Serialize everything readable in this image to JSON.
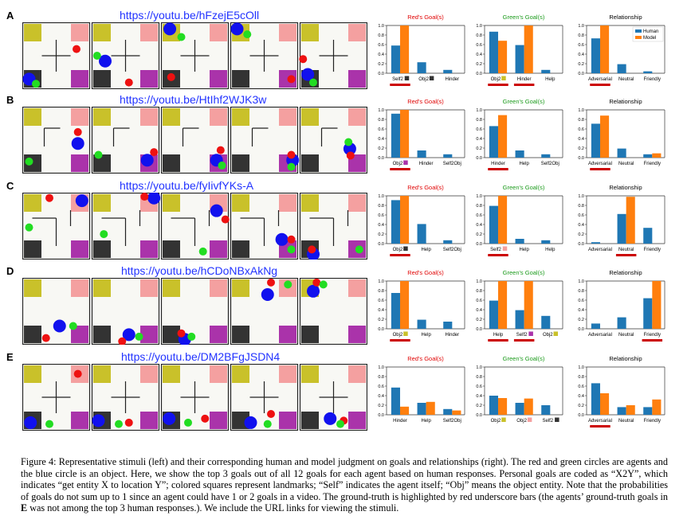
{
  "colors": {
    "human": "#1f77b4",
    "model": "#ff7f0e",
    "gt_bar": "#cc0000",
    "title_red": "#e00000",
    "title_green": "#1a9a1a",
    "yellow": "#c9c12a",
    "pink": "#f4a0a0",
    "black_lm": "#333333",
    "purple": "#aa33aa",
    "agent_red": "#ee1111",
    "agent_green": "#22dd22",
    "object_blue": "#1111ee",
    "url": "#2233ff"
  },
  "legend": {
    "human": "Human",
    "model": "Model"
  },
  "rows": [
    {
      "letter": "A",
      "url": "https://youtu.be/hFzejE5cOll",
      "frames": [
        {
          "walls": "cross",
          "red": [
            0.8,
            0.4
          ],
          "green": [
            0.2,
            0.92
          ],
          "blue": [
            0.1,
            0.85
          ]
        },
        {
          "walls": "cross",
          "red": [
            0.55,
            0.9
          ],
          "green": [
            0.08,
            0.5
          ],
          "blue": [
            0.2,
            0.58
          ]
        },
        {
          "walls": "cross",
          "red": [
            0.15,
            0.82
          ],
          "green": [
            0.3,
            0.22
          ],
          "blue": [
            0.13,
            0.1
          ]
        },
        {
          "walls": "cross",
          "red": [
            0.9,
            0.85
          ],
          "green": [
            0.25,
            0.18
          ],
          "blue": [
            0.1,
            0.1
          ]
        },
        {
          "walls": "cross",
          "red": [
            0.05,
            0.55
          ],
          "green": [
            0.2,
            0.9
          ],
          "blue": [
            0.12,
            0.78
          ]
        }
      ],
      "charts": [
        {
          "title": "Red's Goal(s)",
          "title_color": "red",
          "labels": [
            "Self2",
            "Obj2",
            "Hinder"
          ],
          "swatches": [
            "black",
            "black",
            ""
          ],
          "human": [
            0.58,
            0.23,
            0.07
          ],
          "model": [
            1.0,
            0,
            0
          ],
          "gt": [
            0
          ]
        },
        {
          "title": "Green's Goal(s)",
          "title_color": "green",
          "labels": [
            "Obj2",
            "Hinder",
            "Help"
          ],
          "swatches": [
            "yellow",
            "",
            ""
          ],
          "human": [
            0.87,
            0.59,
            0.07
          ],
          "model": [
            0.68,
            1.0,
            0
          ],
          "gt": [
            0,
            1
          ]
        },
        {
          "title": "Relationship",
          "title_color": "black",
          "labels": [
            "Adversarial",
            "Neutral",
            "Friendly"
          ],
          "swatches": [
            "",
            "",
            ""
          ],
          "human": [
            0.73,
            0.19,
            0.04
          ],
          "model": [
            1.0,
            0,
            0
          ],
          "gt": [
            0
          ],
          "legend": true
        }
      ]
    },
    {
      "letter": "B",
      "url": "https://youtu.be/HtIhf2WJK3w",
      "frames": [
        {
          "walls": "corner",
          "red": [
            0.82,
            0.38
          ],
          "green": [
            0.1,
            0.82
          ],
          "blue": [
            0.82,
            0.55
          ]
        },
        {
          "walls": "corner",
          "red": [
            0.92,
            0.68
          ],
          "green": [
            0.1,
            0.72
          ],
          "blue": [
            0.82,
            0.8
          ]
        },
        {
          "walls": "corner",
          "red": [
            0.88,
            0.65
          ],
          "green": [
            0.9,
            0.88
          ],
          "blue": [
            0.82,
            0.8
          ]
        },
        {
          "walls": "corner",
          "red": [
            0.9,
            0.72
          ],
          "green": [
            0.9,
            0.9
          ],
          "blue": [
            0.92,
            0.8
          ]
        },
        {
          "walls": "corner",
          "red": [
            0.75,
            0.73
          ],
          "green": [
            0.72,
            0.53
          ],
          "blue": [
            0.74,
            0.63
          ]
        }
      ],
      "charts": [
        {
          "title": "Red's Goal(s)",
          "title_color": "red",
          "labels": [
            "Obj2",
            "Hinder",
            "Self2Obj"
          ],
          "swatches": [
            "purple",
            "",
            ""
          ],
          "human": [
            0.92,
            0.15,
            0.07
          ],
          "model": [
            1.0,
            0,
            0
          ],
          "gt": [
            0
          ]
        },
        {
          "title": "Green's Goal(s)",
          "title_color": "green",
          "labels": [
            "Hinder",
            "Help",
            "Self2Obj"
          ],
          "swatches": [
            "",
            "",
            ""
          ],
          "human": [
            0.66,
            0.15,
            0.07
          ],
          "model": [
            0.89,
            0,
            0
          ],
          "gt": [
            0
          ]
        },
        {
          "title": "Relationship",
          "title_color": "black",
          "labels": [
            "Adversarial",
            "Neutral",
            "Friendly"
          ],
          "swatches": [
            "",
            "",
            ""
          ],
          "human": [
            0.71,
            0.19,
            0.07
          ],
          "model": [
            0.88,
            0,
            0.09
          ],
          "gt": [
            0
          ]
        }
      ]
    },
    {
      "letter": "C",
      "url": "https://youtu.be/fyIivfYKs-A",
      "frames": [
        {
          "walls": "tee",
          "red": [
            0.4,
            0.08
          ],
          "green": [
            0.1,
            0.52
          ],
          "blue": [
            0.88,
            0.12
          ]
        },
        {
          "walls": "tee",
          "red": [
            0.78,
            0.06
          ],
          "green": [
            0.18,
            0.62
          ],
          "blue": [
            0.92,
            0.08
          ]
        },
        {
          "walls": "tee",
          "red": [
            0.95,
            0.4
          ],
          "green": [
            0.62,
            0.88
          ],
          "blue": [
            0.82,
            0.27
          ]
        },
        {
          "walls": "tee",
          "red": [
            0.9,
            0.7
          ],
          "green": [
            0.9,
            0.85
          ],
          "blue": [
            0.76,
            0.7
          ]
        },
        {
          "walls": "tee",
          "red": [
            0.18,
            0.85
          ],
          "green": [
            0.88,
            0.85
          ],
          "blue": [
            0.2,
            0.92
          ]
        }
      ],
      "charts": [
        {
          "title": "Red's Goal(s)",
          "title_color": "red",
          "labels": [
            "Obj2",
            "Help",
            "Self2Obj"
          ],
          "swatches": [
            "black",
            "",
            ""
          ],
          "human": [
            0.91,
            0.41,
            0.07
          ],
          "model": [
            1.0,
            0,
            0
          ],
          "gt": [
            0
          ]
        },
        {
          "title": "Green's Goal(s)",
          "title_color": "green",
          "labels": [
            "Self2",
            "Help",
            "Help"
          ],
          "swatches": [
            "pink",
            "",
            ""
          ],
          "human": [
            0.79,
            0.1,
            0.07
          ],
          "model": [
            1.0,
            0,
            0
          ],
          "gt": [
            0
          ]
        },
        {
          "title": "Relationship",
          "title_color": "black",
          "labels": [
            "Adversarial",
            "Neutral",
            "Friendly"
          ],
          "swatches": [
            "",
            "",
            ""
          ],
          "human": [
            0.03,
            0.62,
            0.33
          ],
          "model": [
            0,
            0.98,
            0
          ],
          "gt": [
            1
          ]
        }
      ]
    },
    {
      "letter": "D",
      "url": "https://youtu.be/hCDoNBxAkNg",
      "frames": [
        {
          "walls": "none",
          "red": [
            0.35,
            0.9
          ],
          "green": [
            0.75,
            0.72
          ],
          "blue": [
            0.55,
            0.72
          ]
        },
        {
          "walls": "none",
          "red": [
            0.45,
            0.95
          ],
          "green": [
            0.7,
            0.88
          ],
          "blue": [
            0.55,
            0.85
          ]
        },
        {
          "walls": "none",
          "red": [
            0.3,
            0.83
          ],
          "green": [
            0.45,
            0.88
          ],
          "blue": [
            0.35,
            0.92
          ]
        },
        {
          "walls": "none",
          "red": [
            0.6,
            0.07
          ],
          "green": [
            0.85,
            0.1
          ],
          "blue": [
            0.55,
            0.25
          ]
        },
        {
          "walls": "none",
          "red": [
            0.25,
            0.07
          ],
          "green": [
            0.35,
            0.1
          ],
          "blue": [
            0.2,
            0.2
          ]
        }
      ],
      "charts": [
        {
          "title": "Red's Goal(s)",
          "title_color": "red",
          "labels": [
            "Obj2",
            "Help",
            "Hinder"
          ],
          "swatches": [
            "yellow",
            "",
            ""
          ],
          "human": [
            0.75,
            0.19,
            0.15
          ],
          "model": [
            1.0,
            0,
            0
          ],
          "gt": [
            0
          ]
        },
        {
          "title": "Green's Goal(s)",
          "title_color": "green",
          "labels": [
            "Help",
            "Self2",
            "Obj2"
          ],
          "swatches": [
            "",
            "purple",
            "yellow"
          ],
          "human": [
            0.59,
            0.39,
            0.27
          ],
          "model": [
            1.0,
            1.0,
            0
          ],
          "gt": [
            0,
            1
          ]
        },
        {
          "title": "Relationship",
          "title_color": "black",
          "labels": [
            "Adversarial",
            "Neutral",
            "Friendly"
          ],
          "swatches": [
            "",
            "",
            ""
          ],
          "human": [
            0.11,
            0.24,
            0.64
          ],
          "model": [
            0,
            0,
            1.0
          ],
          "gt": [
            2
          ]
        }
      ]
    },
    {
      "letter": "E",
      "url": "https://youtu.be/DM2BFgJSDN4",
      "frames": [
        {
          "walls": "cross",
          "red": [
            0.82,
            0.15
          ],
          "green": [
            0.4,
            0.9
          ],
          "blue": [
            0.12,
            0.88
          ]
        },
        {
          "walls": "cross",
          "red": [
            0.55,
            0.88
          ],
          "green": [
            0.4,
            0.9
          ],
          "blue": [
            0.1,
            0.85
          ]
        },
        {
          "walls": "cross",
          "red": [
            0.65,
            0.82
          ],
          "green": [
            0.4,
            0.88
          ],
          "blue": [
            0.12,
            0.82
          ]
        },
        {
          "walls": "cross",
          "red": [
            0.6,
            0.75
          ],
          "green": [
            0.55,
            0.9
          ],
          "blue": [
            0.3,
            0.88
          ]
        },
        {
          "walls": "cross",
          "red": [
            0.65,
            0.85
          ],
          "green": [
            0.6,
            0.9
          ],
          "blue": [
            0.45,
            0.82
          ]
        }
      ],
      "charts": [
        {
          "title": "Red's Goal(s)",
          "title_color": "red",
          "labels": [
            "Hinder",
            "Help",
            "Self2Obj"
          ],
          "swatches": [
            "",
            "",
            ""
          ],
          "human": [
            0.57,
            0.25,
            0.12
          ],
          "model": [
            0.17,
            0.27,
            0.09
          ],
          "gt": []
        },
        {
          "title": "Green's Goal(s)",
          "title_color": "green",
          "labels": [
            "Obj2",
            "Obj2",
            "Self2"
          ],
          "swatches": [
            "yellow",
            "pink",
            "black"
          ],
          "human": [
            0.4,
            0.25,
            0.2
          ],
          "model": [
            0.35,
            0.34,
            0
          ],
          "gt": []
        },
        {
          "title": "Relationship",
          "title_color": "black",
          "labels": [
            "Adversarial",
            "Neutral",
            "Friendly"
          ],
          "swatches": [
            "",
            "",
            ""
          ],
          "human": [
            0.66,
            0.16,
            0.16
          ],
          "model": [
            0.45,
            0.2,
            0.32
          ],
          "gt": [
            0
          ]
        }
      ]
    }
  ],
  "chart_data": {
    "type": "bar",
    "yticks": [
      "0.0",
      "0.2",
      "0.4",
      "0.6",
      "0.8",
      "1.0"
    ],
    "ylim": [
      0,
      1.0
    ]
  },
  "caption": {
    "label": "Figure 4:",
    "text": "Representative stimuli (left) and their corresponding human and model judgment on goals and relationships (right). The red and green circles are agents and the blue circle is an object. Here, we show the top 3 goals out of all 12 goals for each agent based on human responses. Personal goals are coded as “X2Y”, which indicates “get entity X to location Y”; colored squares represent landmarks; “Self” indicates the agent itself; “Obj” means the object entity. Note that the probabilities of goals do not sum up to 1 since an agent could have 1 or 2 goals in a video. The ground-truth is highlighted by red underscore bars (the agents’ ground-truth goals in",
    "bold": "E",
    "text2": "was not among the top 3 human responses.). We include the URL links for viewing the stimuli."
  }
}
